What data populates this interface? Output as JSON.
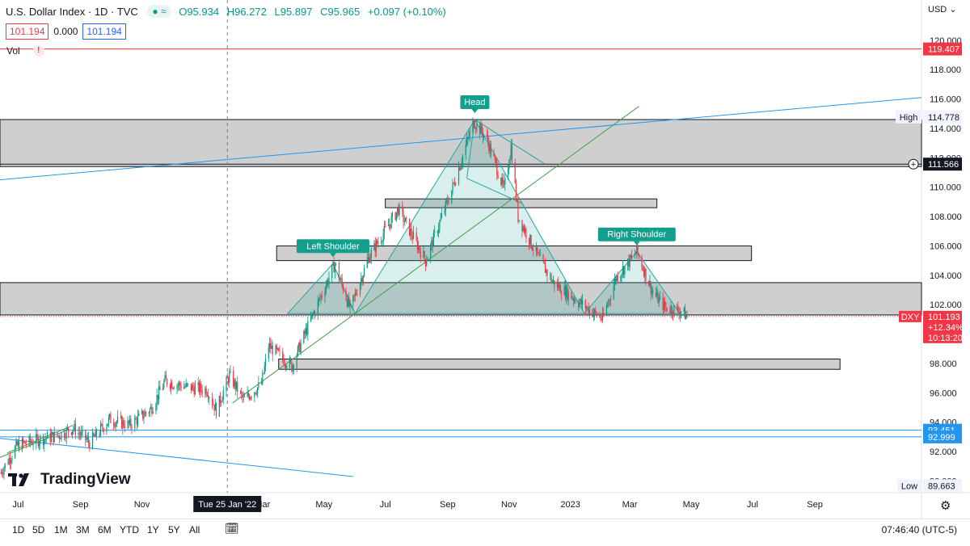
{
  "header": {
    "symbol": "U.S. Dollar Index · 1D · TVC",
    "open": "O95.934",
    "high": "H96.272",
    "low": "L95.897",
    "close": "C95.965",
    "change": "+0.097 (+0.10%)",
    "sell_price": "101.194",
    "spread": "0.000",
    "buy_price": "101.194",
    "volume_label": "Vol",
    "currency": "USD"
  },
  "footer": {
    "timeframes": [
      "1D",
      "5D",
      "1M",
      "3M",
      "6M",
      "YTD",
      "1Y",
      "5Y",
      "All"
    ],
    "clock": "07:46:40 (UTC-5)",
    "brand": "TradingView"
  },
  "chart_data": {
    "type": "candlestick",
    "title": "U.S. Dollar Index",
    "y_axis": {
      "range": [
        89.2,
        121.2
      ],
      "ticks": [
        "120.000",
        "118.000",
        "116.000",
        "114.000",
        "112.000",
        "110.000",
        "108.000",
        "106.000",
        "104.000",
        "102.000",
        "98.000",
        "96.000",
        "94.000",
        "92.000",
        "90.000"
      ]
    },
    "x_axis": {
      "start": "2021-06-13",
      "end": "2023-12-16",
      "labels": [
        {
          "text": "Jul",
          "date": "2021-07-01"
        },
        {
          "text": "Sep",
          "date": "2021-09-01"
        },
        {
          "text": "Nov",
          "date": "2021-11-01"
        },
        {
          "text": "Mar",
          "date": "2022-03-01"
        },
        {
          "text": "May",
          "date": "2022-05-01"
        },
        {
          "text": "Jul",
          "date": "2022-07-01"
        },
        {
          "text": "Sep",
          "date": "2022-09-01"
        },
        {
          "text": "Nov",
          "date": "2022-11-01"
        },
        {
          "text": "2023",
          "date": "2023-01-01"
        },
        {
          "text": "Mar",
          "date": "2023-03-01"
        },
        {
          "text": "May",
          "date": "2023-05-01"
        },
        {
          "text": "Jul",
          "date": "2023-07-01"
        },
        {
          "text": "Sep",
          "date": "2023-09-01"
        }
      ],
      "crosshair": {
        "date": "2022-01-25",
        "label": "Tue 25 Jan '22"
      }
    },
    "colors": {
      "up": "#089981",
      "down": "#f23645",
      "pattern": "#26a69a",
      "zone": "#808080",
      "trend_green": "#43a047",
      "trend_blue": "#2196f3",
      "red_level": "#f23645"
    },
    "price_path": [
      {
        "date": "2021-06-13",
        "value": 90.5
      },
      {
        "date": "2021-06-30",
        "value": 92.4
      },
      {
        "date": "2021-07-20",
        "value": 92.8
      },
      {
        "date": "2021-08-10",
        "value": 93.1
      },
      {
        "date": "2021-08-25",
        "value": 93.6
      },
      {
        "date": "2021-09-10",
        "value": 92.6
      },
      {
        "date": "2021-09-30",
        "value": 94.2
      },
      {
        "date": "2021-10-20",
        "value": 93.8
      },
      {
        "date": "2021-11-10",
        "value": 94.9
      },
      {
        "date": "2021-11-24",
        "value": 96.8
      },
      {
        "date": "2021-12-15",
        "value": 96.4
      },
      {
        "date": "2022-01-05",
        "value": 96.2
      },
      {
        "date": "2022-01-14",
        "value": 94.8
      },
      {
        "date": "2022-01-27",
        "value": 97.2
      },
      {
        "date": "2022-02-10",
        "value": 95.5
      },
      {
        "date": "2022-02-28",
        "value": 96.6
      },
      {
        "date": "2022-03-07",
        "value": 99.2
      },
      {
        "date": "2022-03-30",
        "value": 97.8
      },
      {
        "date": "2022-04-15",
        "value": 100.5
      },
      {
        "date": "2022-05-12",
        "value": 104.8
      },
      {
        "date": "2022-05-27",
        "value": 101.7
      },
      {
        "date": "2022-06-15",
        "value": 105.3
      },
      {
        "date": "2022-07-14",
        "value": 108.5
      },
      {
        "date": "2022-08-10",
        "value": 105.0
      },
      {
        "date": "2022-09-05",
        "value": 109.8
      },
      {
        "date": "2022-09-27",
        "value": 114.5
      },
      {
        "date": "2022-10-10",
        "value": 113.3
      },
      {
        "date": "2022-10-27",
        "value": 109.8
      },
      {
        "date": "2022-11-03",
        "value": 112.8
      },
      {
        "date": "2022-11-10",
        "value": 108.0
      },
      {
        "date": "2022-11-30",
        "value": 105.2
      },
      {
        "date": "2022-12-15",
        "value": 103.5
      },
      {
        "date": "2023-01-17",
        "value": 101.8
      },
      {
        "date": "2023-02-02",
        "value": 101.0
      },
      {
        "date": "2023-02-15",
        "value": 103.8
      },
      {
        "date": "2023-03-08",
        "value": 105.6
      },
      {
        "date": "2023-03-24",
        "value": 102.8
      },
      {
        "date": "2023-04-05",
        "value": 101.8
      },
      {
        "date": "2023-04-20",
        "value": 101.6
      },
      {
        "date": "2023-04-27",
        "value": 101.2
      }
    ],
    "zones": [
      {
        "from_date": "2021-06-13",
        "to_date": "2023-12-16",
        "low": 111.4,
        "high": 114.6
      },
      {
        "from_date": "2022-07-01",
        "to_date": "2023-03-28",
        "low": 108.6,
        "high": 109.2
      },
      {
        "from_date": "2022-03-15",
        "to_date": "2023-06-30",
        "low": 105.0,
        "high": 106.0
      },
      {
        "from_date": "2021-06-13",
        "to_date": "2023-12-16",
        "low": 101.3,
        "high": 103.5
      },
      {
        "from_date": "2022-03-17",
        "to_date": "2023-09-26",
        "low": 97.6,
        "high": 98.3
      }
    ],
    "pattern_polygons": [
      [
        {
          "date": "2022-03-26",
          "value": 101.4
        },
        {
          "date": "2022-05-10",
          "value": 104.8
        },
        {
          "date": "2022-06-01",
          "value": 101.4
        }
      ],
      [
        {
          "date": "2022-06-01",
          "value": 101.4
        },
        {
          "date": "2022-09-28",
          "value": 114.6
        },
        {
          "date": "2023-01-15",
          "value": 101.4
        }
      ],
      [
        {
          "date": "2023-01-15",
          "value": 101.4
        },
        {
          "date": "2023-03-08",
          "value": 105.6
        },
        {
          "date": "2023-04-20",
          "value": 101.4
        }
      ]
    ],
    "pattern_lines": [
      [
        {
          "date": "2022-05-10",
          "value": 104.8
        },
        {
          "date": "2022-05-30",
          "value": 101.6
        }
      ],
      [
        {
          "date": "2022-09-28",
          "value": 114.6
        },
        {
          "date": "2022-12-06",
          "value": 111.6
        }
      ],
      [
        {
          "date": "2022-09-20",
          "value": 110.6
        },
        {
          "date": "2022-11-14",
          "value": 108.9
        }
      ],
      [
        {
          "date": "2022-09-28",
          "value": 114.6
        },
        {
          "date": "2022-09-20",
          "value": 110.6
        }
      ]
    ],
    "annotations": [
      {
        "text": "Left Shoulder",
        "date": "2022-05-10",
        "value": 104.8
      },
      {
        "text": "Head",
        "date": "2022-09-28",
        "value": 114.6
      },
      {
        "text": "Right Shoulder",
        "date": "2023-03-08",
        "value": 105.6
      }
    ],
    "trendlines": [
      {
        "color": "green",
        "points": [
          {
            "date": "2022-01-30",
            "value": 95.3
          },
          {
            "date": "2023-03-10",
            "value": 115.5
          }
        ]
      },
      {
        "color": "blue",
        "points": [
          {
            "date": "2021-06-13",
            "value": 110.5
          },
          {
            "date": "2023-12-16",
            "value": 116.1
          }
        ]
      },
      {
        "color": "blue",
        "points": [
          {
            "date": "2021-06-13",
            "value": 92.9
          },
          {
            "date": "2022-05-30",
            "value": 90.3
          }
        ]
      },
      {
        "color": "green",
        "points": [
          {
            "date": "2021-06-13",
            "value": 91.6
          },
          {
            "date": "2021-08-20",
            "value": 93.5
          }
        ]
      },
      {
        "color": "green",
        "points": [
          {
            "date": "2021-06-20",
            "value": 91.9
          },
          {
            "date": "2021-08-25",
            "value": 93.8
          }
        ]
      }
    ],
    "horizontal_levels": [
      {
        "value": 119.407,
        "label": "119.407",
        "color": "red"
      },
      {
        "value": 111.566,
        "label": "111.566",
        "color": "dark"
      },
      {
        "value": 93.451,
        "label": "93.451",
        "color": "blue"
      },
      {
        "value": 92.999,
        "label": "92.999",
        "color": "blue"
      }
    ],
    "high_marker": {
      "label": "High",
      "value": 114.778,
      "text": "114.778"
    },
    "low_marker": {
      "label": "Low",
      "value": 89.663,
      "text": "89.663"
    },
    "last_price": {
      "symbol": "DXY",
      "value": 101.193,
      "text": "101.193",
      "change": "+12.34%",
      "countdown": "10:13:20"
    }
  }
}
